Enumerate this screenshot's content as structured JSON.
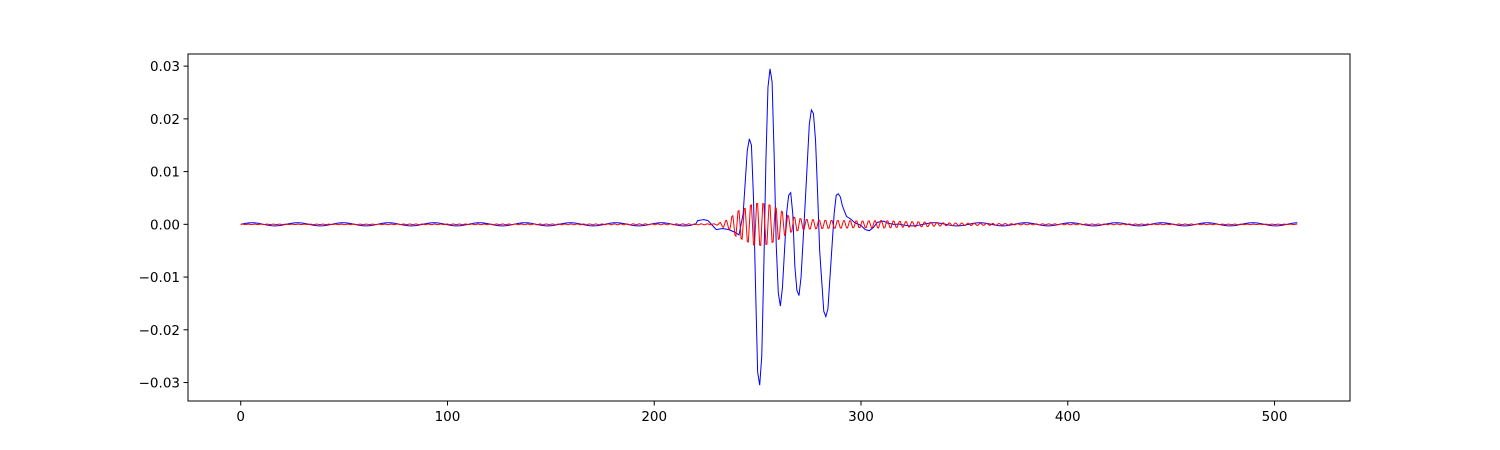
{
  "chart_data": {
    "type": "line",
    "title": "",
    "xlabel": "",
    "ylabel": "",
    "xlim": [
      -25.5,
      536.5
    ],
    "ylim": [
      -0.0335,
      0.0323
    ],
    "x_ticks": [
      0,
      100,
      200,
      300,
      400,
      500
    ],
    "y_ticks": [
      -0.03,
      -0.02,
      -0.01,
      0.0,
      0.01,
      0.02,
      0.03
    ],
    "x_tick_labels": [
      "0",
      "100",
      "200",
      "300",
      "400",
      "500"
    ],
    "y_tick_labels": [
      "−0.03",
      "−0.02",
      "−0.01",
      "0.00",
      "0.01",
      "0.02",
      "0.03"
    ],
    "grid": false,
    "legend": "none",
    "x_domain": [
      0,
      511
    ],
    "series": [
      {
        "color": "#0000ff",
        "description": "low-frequency wavelet packet with small background ripple",
        "background_ripple": {
          "amplitude": 0.0003,
          "period": 22
        },
        "keypoints": [
          [
            0,
            0.0
          ],
          [
            220,
            0.0
          ],
          [
            221,
            0.0007
          ],
          [
            224,
            0.0009
          ],
          [
            226,
            0.0007
          ],
          [
            230,
            -0.001
          ],
          [
            233,
            -0.0008
          ],
          [
            236,
            -0.001
          ],
          [
            239,
            -0.0015
          ],
          [
            241,
            -0.002
          ],
          [
            243,
            0.002
          ],
          [
            245,
            0.014
          ],
          [
            246,
            0.0162
          ],
          [
            247,
            0.015
          ],
          [
            248,
            0.005
          ],
          [
            249,
            -0.012
          ],
          [
            250,
            -0.028
          ],
          [
            251,
            -0.0305
          ],
          [
            252,
            -0.025
          ],
          [
            253,
            -0.008
          ],
          [
            254,
            0.012
          ],
          [
            255,
            0.026
          ],
          [
            256,
            0.0295
          ],
          [
            257,
            0.027
          ],
          [
            258,
            0.013
          ],
          [
            259,
            -0.004
          ],
          [
            260,
            -0.013
          ],
          [
            261,
            -0.0155
          ],
          [
            262,
            -0.012
          ],
          [
            264,
            0.002
          ],
          [
            265,
            0.0055
          ],
          [
            266,
            0.006
          ],
          [
            267,
            0.002
          ],
          [
            268,
            -0.008
          ],
          [
            269,
            -0.0125
          ],
          [
            270,
            -0.0135
          ],
          [
            271,
            -0.01
          ],
          [
            273,
            0.004
          ],
          [
            275,
            0.019
          ],
          [
            276,
            0.0217
          ],
          [
            277,
            0.021
          ],
          [
            278,
            0.016
          ],
          [
            279,
            0.006
          ],
          [
            280,
            -0.005
          ],
          [
            282,
            -0.0165
          ],
          [
            283,
            -0.0175
          ],
          [
            284,
            -0.016
          ],
          [
            286,
            -0.004
          ],
          [
            287,
            0.002
          ],
          [
            288,
            0.0055
          ],
          [
            289,
            0.0058
          ],
          [
            290,
            0.0052
          ],
          [
            291,
            0.0035
          ],
          [
            293,
            0.0015
          ],
          [
            295,
            0.001
          ],
          [
            297,
            0.0003
          ],
          [
            300,
            -0.0002
          ],
          [
            302,
            -0.001
          ],
          [
            304,
            -0.0012
          ],
          [
            306,
            -0.0006
          ],
          [
            308,
            0.0004
          ],
          [
            311,
            0.0006
          ],
          [
            313,
            0.0002
          ],
          [
            316,
            0.0
          ],
          [
            511,
            0.0
          ]
        ]
      },
      {
        "color": "#ff0000",
        "description": "high-frequency packet, period ~3 samples",
        "period": 3,
        "envelope": [
          [
            0,
            4e-05
          ],
          [
            230,
            0.0001
          ],
          [
            236,
            0.001
          ],
          [
            240,
            0.0028
          ],
          [
            244,
            0.0035
          ],
          [
            248,
            0.0045
          ],
          [
            252,
            0.0046
          ],
          [
            256,
            0.0042
          ],
          [
            260,
            0.0033
          ],
          [
            265,
            0.0018
          ],
          [
            272,
            0.0011
          ],
          [
            280,
            0.0009
          ],
          [
            290,
            0.0008
          ],
          [
            300,
            0.0007
          ],
          [
            310,
            0.0008
          ],
          [
            320,
            0.0006
          ],
          [
            330,
            0.0005
          ],
          [
            340,
            0.0003
          ],
          [
            360,
            0.0002
          ],
          [
            380,
            0.0001
          ],
          [
            511,
            4e-05
          ]
        ]
      }
    ]
  }
}
